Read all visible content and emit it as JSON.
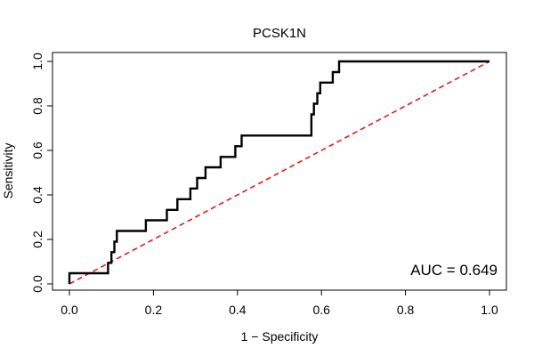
{
  "chart_data": {
    "type": "line",
    "title": "PCSK1N",
    "xlabel": "1 − Specificity",
    "ylabel": "Sensitivity",
    "xlim": [
      0.0,
      1.0
    ],
    "ylim": [
      0.0,
      1.0
    ],
    "x_ticks": [
      0.0,
      0.2,
      0.4,
      0.6,
      0.8,
      1.0
    ],
    "x_tick_labels": [
      "0.0",
      "0.2",
      "0.4",
      "0.6",
      "0.8",
      "1.0"
    ],
    "y_ticks": [
      0.0,
      0.2,
      0.4,
      0.6,
      0.8,
      1.0
    ],
    "y_tick_labels": [
      "0.0",
      "0.2",
      "0.4",
      "0.6",
      "0.8",
      "1.0"
    ],
    "grid": false,
    "series": [
      {
        "name": "ROC curve",
        "style": "solid",
        "color": "#000000",
        "points": [
          [
            0.0,
            0.0
          ],
          [
            0.0,
            0.048
          ],
          [
            0.092,
            0.048
          ],
          [
            0.092,
            0.095
          ],
          [
            0.1,
            0.095
          ],
          [
            0.1,
            0.143
          ],
          [
            0.107,
            0.143
          ],
          [
            0.107,
            0.19
          ],
          [
            0.113,
            0.19
          ],
          [
            0.113,
            0.238
          ],
          [
            0.182,
            0.238
          ],
          [
            0.182,
            0.286
          ],
          [
            0.232,
            0.286
          ],
          [
            0.232,
            0.333
          ],
          [
            0.257,
            0.333
          ],
          [
            0.257,
            0.381
          ],
          [
            0.288,
            0.381
          ],
          [
            0.288,
            0.429
          ],
          [
            0.304,
            0.429
          ],
          [
            0.304,
            0.476
          ],
          [
            0.324,
            0.476
          ],
          [
            0.324,
            0.524
          ],
          [
            0.36,
            0.524
          ],
          [
            0.36,
            0.571
          ],
          [
            0.395,
            0.571
          ],
          [
            0.395,
            0.619
          ],
          [
            0.41,
            0.619
          ],
          [
            0.41,
            0.667
          ],
          [
            0.576,
            0.667
          ],
          [
            0.576,
            0.762
          ],
          [
            0.582,
            0.762
          ],
          [
            0.582,
            0.81
          ],
          [
            0.59,
            0.81
          ],
          [
            0.59,
            0.857
          ],
          [
            0.597,
            0.857
          ],
          [
            0.597,
            0.905
          ],
          [
            0.627,
            0.905
          ],
          [
            0.627,
            0.952
          ],
          [
            0.642,
            0.952
          ],
          [
            0.642,
            1.0
          ],
          [
            1.0,
            1.0
          ]
        ]
      },
      {
        "name": "Chance line",
        "style": "dashed",
        "color": "#e31a1c",
        "points": [
          [
            0.0,
            0.0
          ],
          [
            1.0,
            1.0
          ]
        ]
      }
    ],
    "annotations": [
      {
        "text": "AUC = 0.649",
        "position": "bottom-right"
      }
    ]
  }
}
